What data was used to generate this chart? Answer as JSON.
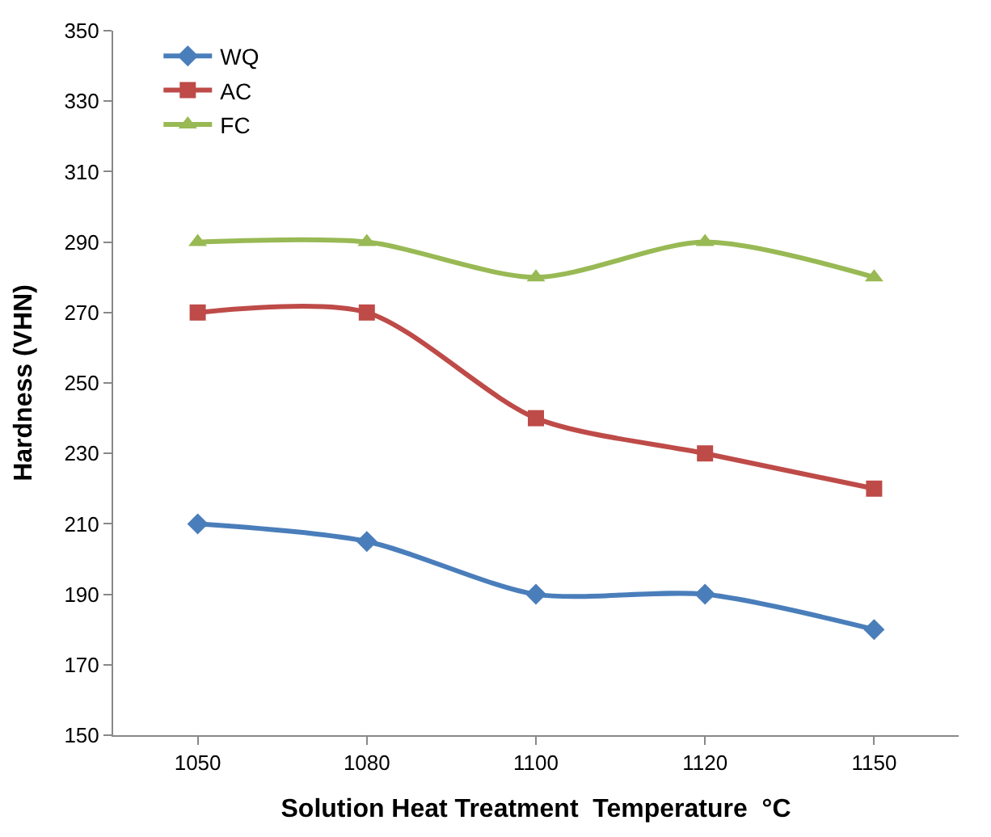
{
  "chart_data": {
    "type": "line",
    "xlabel": "Solution Heat Treatment  Temperature  °C",
    "ylabel": "Hardness (VHN)",
    "categories": [
      "1050",
      "1080",
      "1100",
      "1120",
      "1150"
    ],
    "series": [
      {
        "name": "WQ",
        "color": "#4a7ebb",
        "marker": "diamond",
        "values": [
          210,
          205,
          190,
          190,
          180
        ]
      },
      {
        "name": "AC",
        "color": "#be4b48",
        "marker": "square",
        "values": [
          270,
          270,
          240,
          230,
          220
        ]
      },
      {
        "name": "FC",
        "color": "#98b954",
        "marker": "triangle",
        "values": [
          290,
          290,
          280,
          290,
          280
        ]
      }
    ],
    "ylim": [
      150,
      350
    ],
    "yticks": [
      150,
      170,
      190,
      210,
      230,
      250,
      270,
      290,
      310,
      330,
      350
    ],
    "grid": false,
    "legend": "top left",
    "line_style": "solid"
  }
}
